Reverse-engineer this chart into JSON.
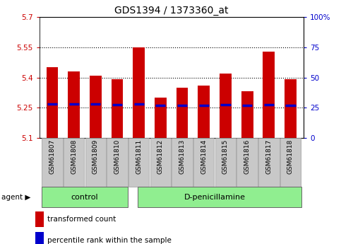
{
  "title": "GDS1394 / 1373360_at",
  "samples": [
    "GSM61807",
    "GSM61808",
    "GSM61809",
    "GSM61810",
    "GSM61811",
    "GSM61812",
    "GSM61813",
    "GSM61814",
    "GSM61815",
    "GSM61816",
    "GSM61817",
    "GSM61818"
  ],
  "bar_values": [
    5.45,
    5.43,
    5.41,
    5.39,
    5.55,
    5.3,
    5.35,
    5.36,
    5.42,
    5.33,
    5.53,
    5.39
  ],
  "bar_bottom": 5.1,
  "percentile_values": [
    5.27,
    5.27,
    5.27,
    5.265,
    5.27,
    5.262,
    5.262,
    5.262,
    5.265,
    5.262,
    5.265,
    5.262
  ],
  "ylim_left": [
    5.1,
    5.7
  ],
  "ylim_right": [
    0,
    100
  ],
  "yticks_left": [
    5.1,
    5.25,
    5.4,
    5.55,
    5.7
  ],
  "yticks_right": [
    0,
    25,
    50,
    75,
    100
  ],
  "ytick_labels_left": [
    "5.1",
    "5.25",
    "5.4",
    "5.55",
    "5.7"
  ],
  "ytick_labels_right": [
    "0",
    "25",
    "50",
    "75",
    "100%"
  ],
  "hlines": [
    5.25,
    5.4,
    5.55
  ],
  "bar_color": "#CC0000",
  "percentile_color": "#0000CC",
  "bar_width": 0.55,
  "ctrl_count": 4,
  "treat_count": 8,
  "control_label": "control",
  "treatment_label": "D-penicillamine",
  "agent_label": "agent",
  "legend_bar_label": "transformed count",
  "legend_pct_label": "percentile rank within the sample",
  "control_bg": "#90EE90",
  "treatment_bg": "#90EE90",
  "xlabel_bg": "#C8C8C8",
  "plot_bg": "#FFFFFF",
  "tick_color_left": "#CC0000",
  "tick_color_right": "#0000CC"
}
